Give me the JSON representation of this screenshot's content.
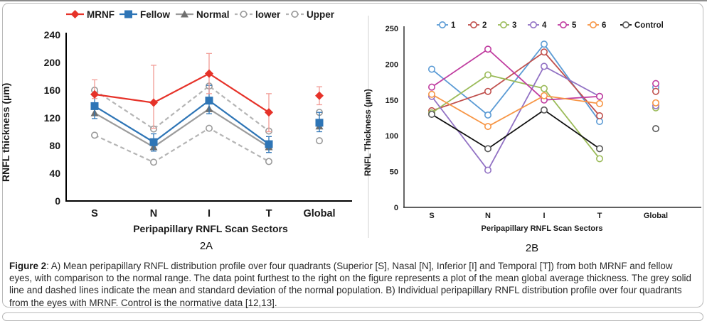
{
  "figure": {
    "panel_a_label": "2A",
    "panel_b_label": "2B"
  },
  "caption": {
    "label": "Figure 2",
    "body": ": A) Mean peripapillary RNFL distribution profile over four quadrants (Superior [S], Nasal [N], Inferior [I] and Temporal [T]) from both MRNF and fellow eyes, with comparison to the normal range. The data point furthest to the right on the figure represents a plot of the mean global average thickness. The grey solid line and dashed lines indicate the mean and standard deviation of the normal population. B) Individual peripapillary RNFL distribution profile over four quadrants from the eyes with MRNF. Control is the normative data [12,13]."
  },
  "chart_data": [
    {
      "id": "A",
      "type": "line",
      "panel_label": "2A",
      "xlabel": "Peripapillary RNFL Scan Sectors",
      "ylabel": "RNFL thickness (µm)",
      "categories": [
        "S",
        "N",
        "I",
        "T",
        "Global"
      ],
      "ylim": [
        0,
        240
      ],
      "yticks": [
        0,
        40,
        80,
        120,
        160,
        200,
        240
      ],
      "grid": false,
      "legend_position": "top",
      "note": "lines connect S-N-I-T only; Global plotted as detached points",
      "series": [
        {
          "name": "MRNF",
          "color": "#e63229",
          "err_color": "#f29b95",
          "marker": "diamond",
          "values": [
            154,
            142,
            184,
            128,
            152
          ],
          "err_low": [
            148,
            105,
            155,
            100,
            139
          ],
          "err_high": [
            175,
            196,
            213,
            155,
            165
          ]
        },
        {
          "name": "Fellow",
          "color": "#2e75b6",
          "err_color": "#2e75b6",
          "marker": "square",
          "values": [
            137,
            85,
            145,
            82,
            113
          ],
          "err_low": [
            119,
            72,
            126,
            70,
            100
          ],
          "err_high": [
            152,
            97,
            167,
            93,
            128
          ]
        },
        {
          "name": "Normal",
          "color": "#9b9b9b",
          "marker_color": "#6f6f6f",
          "marker": "triangle",
          "values": [
            127,
            78,
            133,
            78,
            108
          ]
        },
        {
          "name": "lower",
          "color": "#b5b5b5",
          "marker_color": "#9a9a9a",
          "marker": "circle",
          "dash": true,
          "values": [
            95,
            56,
            105,
            57,
            87
          ]
        },
        {
          "name": "Upper",
          "color": "#b5b5b5",
          "marker_color": "#9a9a9a",
          "marker": "circle",
          "dash": true,
          "values": [
            160,
            104,
            166,
            101,
            128
          ]
        }
      ]
    },
    {
      "id": "B",
      "type": "line",
      "panel_label": "2B",
      "xlabel": "Peripapillary RNFL Scan Sectors",
      "ylabel": "RNFL Thickness (µm)",
      "categories": [
        "S",
        "N",
        "I",
        "T",
        "Global"
      ],
      "ylim": [
        0,
        250
      ],
      "yticks": [
        0,
        50,
        100,
        150,
        200,
        250
      ],
      "grid": false,
      "legend_position": "top",
      "note": "lines connect S-N-I-T only; Global plotted as detached points",
      "series": [
        {
          "name": "1",
          "color": "#5b9bd5",
          "marker": "circle",
          "values": [
            193,
            129,
            228,
            120,
            168
          ]
        },
        {
          "name": "2",
          "color": "#c0504d",
          "marker": "circle",
          "values": [
            135,
            162,
            217,
            128,
            162
          ]
        },
        {
          "name": "3",
          "color": "#9bbb59",
          "marker": "circle",
          "values": [
            132,
            185,
            166,
            68,
            139
          ]
        },
        {
          "name": "4",
          "color": "#9272c4",
          "marker": "circle",
          "values": [
            155,
            52,
            197,
            155,
            142
          ]
        },
        {
          "name": "5",
          "color": "#c03da0",
          "marker": "circle",
          "values": [
            168,
            221,
            150,
            155,
            173
          ]
        },
        {
          "name": "6",
          "color": "#f79646",
          "marker": "circle",
          "values": [
            158,
            113,
            156,
            145,
            146
          ]
        },
        {
          "name": "Control",
          "color": "#111111",
          "marker_color": "#595959",
          "marker": "circle",
          "values": [
            130,
            82,
            136,
            82,
            110
          ]
        }
      ]
    }
  ]
}
